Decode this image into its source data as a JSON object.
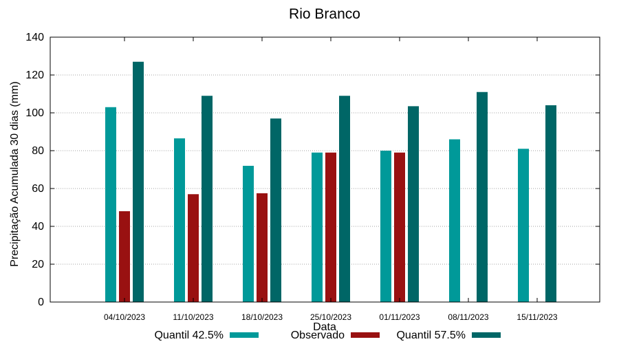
{
  "chart_data": {
    "type": "bar",
    "title": "Rio Branco",
    "xlabel": "Data",
    "ylabel": "Precipitação Acumulada 30 dias (mm)",
    "ylim": [
      0,
      140
    ],
    "yticks": [
      0,
      20,
      40,
      60,
      80,
      100,
      120,
      140
    ],
    "categories": [
      "04/10/2023",
      "11/10/2023",
      "18/10/2023",
      "25/10/2023",
      "01/11/2023",
      "08/11/2023",
      "15/11/2023"
    ],
    "series": [
      {
        "name": "Quantil 42.5%",
        "color": "#009999",
        "values": [
          103,
          86.5,
          72,
          79,
          80,
          86,
          81
        ]
      },
      {
        "name": "Observado",
        "color": "#991111",
        "values": [
          48,
          57,
          57.5,
          79,
          79,
          null,
          null
        ]
      },
      {
        "name": "Quantil 57.5%",
        "color": "#006666",
        "values": [
          127,
          109,
          97,
          109,
          103.5,
          111,
          104
        ]
      }
    ],
    "grid": true,
    "legend_position": "bottom"
  }
}
